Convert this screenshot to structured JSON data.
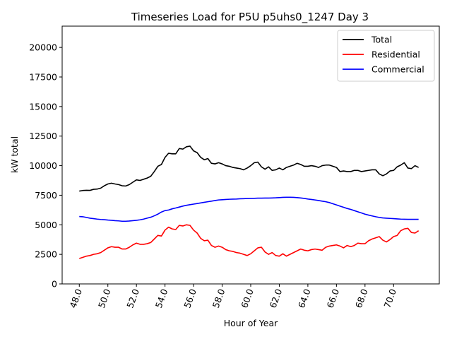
{
  "chart_data": {
    "type": "line",
    "title": "Timeseries Load for P5U p5uhs0_1247  Day 3",
    "xlabel": "Hour of Year",
    "ylabel": "kW total",
    "xlim": [
      46.8,
      73.2
    ],
    "ylim": [
      0,
      21800
    ],
    "xticks": [
      48,
      50,
      52,
      54,
      56,
      58,
      60,
      62,
      64,
      66,
      68,
      70
    ],
    "xtick_labels": [
      "48.0",
      "50.0",
      "52.0",
      "54.0",
      "56.0",
      "58.0",
      "60.0",
      "62.0",
      "64.0",
      "66.0",
      "68.0",
      "70.0"
    ],
    "yticks": [
      0,
      2500,
      5000,
      7500,
      10000,
      12500,
      15000,
      17500,
      20000
    ],
    "ytick_labels": [
      "0",
      "2500",
      "5000",
      "7500",
      "10000",
      "12500",
      "15000",
      "17500",
      "20000"
    ],
    "legend_position": "top-right",
    "x_start": 48.0,
    "x_step": 0.25,
    "series": [
      {
        "name": "Total",
        "color": "#000000",
        "values": [
          7850,
          7900,
          7920,
          7910,
          8000,
          8020,
          8100,
          8300,
          8450,
          8520,
          8450,
          8400,
          8300,
          8280,
          8400,
          8600,
          8800,
          8750,
          8850,
          8950,
          9100,
          9500,
          9950,
          10100,
          10700,
          11050,
          11000,
          11000,
          11450,
          11400,
          11600,
          11650,
          11250,
          11100,
          10700,
          10500,
          10600,
          10200,
          10150,
          10250,
          10150,
          10000,
          9950,
          9850,
          9800,
          9750,
          9650,
          9800,
          10000,
          10250,
          10300,
          9900,
          9700,
          9900,
          9600,
          9650,
          9800,
          9650,
          9850,
          9950,
          10050,
          10200,
          10100,
          9950,
          9950,
          10000,
          9950,
          9850,
          10000,
          10050,
          10050,
          9950,
          9850,
          9500,
          9550,
          9500,
          9500,
          9600,
          9600,
          9500,
          9550,
          9600,
          9650,
          9650,
          9300,
          9150,
          9300,
          9550,
          9600,
          9900,
          10050,
          10250,
          9800,
          9750,
          10000,
          9850
        ]
      },
      {
        "name": "Residential",
        "color": "#ff0000",
        "values": [
          2150,
          2250,
          2350,
          2400,
          2500,
          2550,
          2650,
          2850,
          3050,
          3150,
          3100,
          3100,
          2950,
          2950,
          3100,
          3300,
          3450,
          3350,
          3350,
          3400,
          3500,
          3800,
          4100,
          4050,
          4550,
          4800,
          4650,
          4600,
          4950,
          4900,
          5000,
          4950,
          4550,
          4300,
          3850,
          3650,
          3700,
          3250,
          3100,
          3200,
          3100,
          2900,
          2800,
          2750,
          2650,
          2600,
          2500,
          2400,
          2550,
          2800,
          3050,
          3100,
          2700,
          2500,
          2650,
          2400,
          2350,
          2550,
          2350,
          2500,
          2650,
          2800,
          2950,
          2850,
          2800,
          2900,
          2950,
          2900,
          2850,
          3100,
          3200,
          3250,
          3300,
          3200,
          3050,
          3250,
          3150,
          3250,
          3450,
          3400,
          3400,
          3650,
          3800,
          3900,
          4000,
          3700,
          3550,
          3750,
          4000,
          4100,
          4500,
          4650,
          4700,
          4350,
          4300,
          4500
        ]
      },
      {
        "name": "Commercial",
        "color": "#0000ff",
        "values": [
          5700,
          5680,
          5620,
          5560,
          5520,
          5480,
          5450,
          5430,
          5400,
          5380,
          5350,
          5330,
          5300,
          5300,
          5320,
          5350,
          5380,
          5420,
          5480,
          5560,
          5640,
          5760,
          5900,
          6080,
          6200,
          6250,
          6350,
          6420,
          6500,
          6580,
          6650,
          6700,
          6750,
          6800,
          6850,
          6900,
          6950,
          7000,
          7050,
          7100,
          7120,
          7140,
          7160,
          7170,
          7180,
          7200,
          7210,
          7220,
          7230,
          7240,
          7250,
          7250,
          7260,
          7260,
          7270,
          7280,
          7300,
          7320,
          7330,
          7330,
          7320,
          7300,
          7270,
          7230,
          7180,
          7140,
          7100,
          7050,
          7000,
          6950,
          6880,
          6780,
          6680,
          6580,
          6480,
          6380,
          6300,
          6200,
          6100,
          6000,
          5900,
          5820,
          5750,
          5680,
          5620,
          5580,
          5560,
          5540,
          5520,
          5500,
          5480,
          5470,
          5460,
          5460,
          5460,
          5460
        ]
      }
    ]
  }
}
